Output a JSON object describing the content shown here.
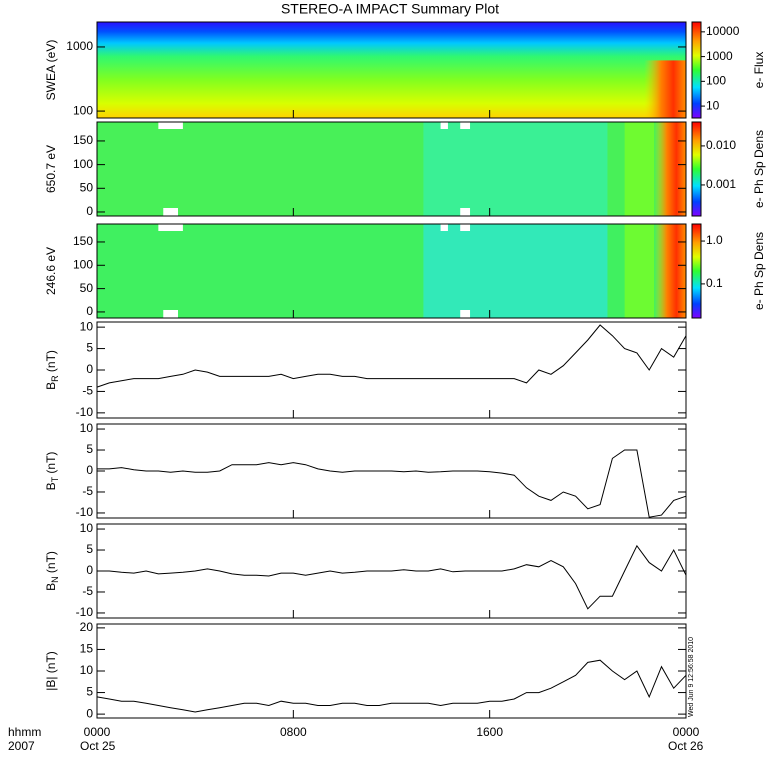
{
  "title": "STEREO-A IMPACT Summary Plot",
  "stamp": "Wed Jun  9 12:56:58 2010",
  "x_axis": {
    "xlim": [
      0,
      24
    ],
    "xticks": [
      {
        "value": 0,
        "label": "0000"
      },
      {
        "value": 8,
        "label": "0800"
      },
      {
        "value": 16,
        "label": "1600"
      },
      {
        "value": 24,
        "label": "0000"
      }
    ],
    "label": "hhmm",
    "year": "2007",
    "dates": [
      "Oct 25",
      "Oct 26"
    ],
    "x": [
      0,
      0.5,
      1,
      1.5,
      2,
      2.5,
      3,
      3.5,
      4,
      4.5,
      5,
      5.5,
      6,
      6.5,
      7,
      7.5,
      8,
      8.5,
      9,
      9.5,
      10,
      10.5,
      11,
      11.5,
      12,
      12.5,
      13,
      13.5,
      14,
      14.5,
      15,
      15.5,
      16,
      16.5,
      17,
      17.5,
      18,
      18.5,
      19,
      19.5,
      20,
      20.5,
      21,
      21.5,
      22,
      22.5,
      23,
      23.5,
      24
    ]
  },
  "chart_data": [
    {
      "type": "spectrogram",
      "ylabel": "SWEA (eV)",
      "log": true,
      "ylim": [
        78,
        2450
      ],
      "yticks": [
        100,
        1000
      ],
      "colorbar": {
        "label": "e- Flux",
        "log": true,
        "clim": [
          3.3,
          25000
        ],
        "ticks": [
          10000,
          1000,
          100,
          10
        ]
      }
    },
    {
      "type": "spectrogram",
      "ylabel": "650.7 eV",
      "ylim": [
        -8.5,
        190
      ],
      "yticks": [
        0,
        50,
        100,
        150
      ],
      "colorbar": {
        "label": "e- Ph Sp Dens",
        "log": true,
        "clim": [
          0.00016,
          0.041
        ],
        "ticks": [
          {
            "value": 0.01,
            "label": "0.010"
          },
          0.001
        ]
      }
    },
    {
      "type": "spectrogram",
      "ylabel": "246.6 eV",
      "ylim": [
        -13,
        188.5
      ],
      "yticks": [
        0,
        50,
        100,
        150
      ],
      "colorbar": {
        "label": "e- Ph Sp Dens",
        "log": true,
        "clim": [
          0.016,
          2.5
        ],
        "ticks": [
          {
            "value": 1,
            "label": "1.0"
          },
          0.1
        ]
      }
    },
    {
      "type": "line",
      "ylabel": {
        "base": "B",
        "sub": "R",
        "unit": " (nT)"
      },
      "ylim": [
        -11.2,
        11.2
      ],
      "yticks": [
        -10,
        -5,
        0,
        5,
        10
      ],
      "color": "#000000",
      "values": [
        -4,
        -3,
        -2.5,
        -2,
        -2,
        -2,
        -1.5,
        -1,
        0,
        -0.5,
        -1.5,
        -1.5,
        -1.5,
        -1.5,
        -1.5,
        -1,
        -2,
        -1.5,
        -1,
        -1,
        -1.5,
        -1.5,
        -2,
        -2,
        -2,
        -2,
        -2,
        -2,
        -2,
        -2,
        -2,
        -2,
        -2,
        -2,
        -2,
        -3,
        0,
        -1,
        1,
        4,
        7,
        10.5,
        8,
        5,
        4,
        0,
        5,
        3,
        8
      ]
    },
    {
      "type": "line",
      "ylabel": {
        "base": "B",
        "sub": "T",
        "unit": " (nT)"
      },
      "ylim": [
        -11.2,
        11.2
      ],
      "yticks": [
        -10,
        -5,
        0,
        5,
        10
      ],
      "color": "#000000",
      "values": [
        0.5,
        0.5,
        0.8,
        0.3,
        0,
        0,
        -0.3,
        0,
        -0.3,
        -0.3,
        0,
        1.5,
        1.5,
        1.5,
        2,
        1.5,
        2,
        1.5,
        0.5,
        0,
        -0.3,
        0,
        0,
        0,
        0,
        -0.2,
        0,
        -0.3,
        -0.2,
        0,
        0,
        0,
        -0.2,
        -0.5,
        -1,
        -4,
        -6,
        -7,
        -5,
        -6,
        -9,
        -8,
        3,
        5,
        5,
        -11,
        -10.5,
        -7,
        -6
      ]
    },
    {
      "type": "line",
      "ylabel": {
        "base": "B",
        "sub": "N",
        "unit": " (nT)"
      },
      "ylim": [
        -11.2,
        11.2
      ],
      "yticks": [
        -10,
        -5,
        0,
        5,
        10
      ],
      "color": "#000000",
      "values": [
        0,
        0,
        -0.3,
        -0.5,
        0,
        -0.7,
        -0.5,
        -0.3,
        0,
        0.5,
        0,
        -0.7,
        -1,
        -1,
        -1.2,
        -0.5,
        -0.5,
        -1,
        -0.5,
        0,
        -0.5,
        -0.3,
        0,
        0,
        0,
        0.3,
        0,
        0,
        0.5,
        -0.2,
        0,
        0,
        0,
        0,
        0.5,
        1.5,
        1,
        2.5,
        1,
        -3,
        -9,
        -6,
        -6,
        0,
        6,
        2,
        0,
        5,
        -1
      ]
    },
    {
      "type": "line",
      "ylabel": "|B| (nT)",
      "ylim": [
        -0.9,
        20.9
      ],
      "yticks": [
        0,
        5,
        10,
        15,
        20
      ],
      "color": "#000000",
      "values": [
        4,
        3.5,
        3,
        3,
        2.5,
        2,
        1.5,
        1,
        0.5,
        1,
        1.5,
        2,
        2.5,
        2.5,
        2,
        3,
        2.5,
        2.5,
        2,
        2,
        2.5,
        2.5,
        2,
        2,
        2.5,
        2.5,
        2.5,
        2.5,
        2,
        2.5,
        2.5,
        2.5,
        3,
        3,
        3.5,
        5,
        5,
        6,
        7.5,
        9,
        12,
        12.5,
        10,
        8,
        10,
        4,
        11,
        6,
        9
      ]
    }
  ]
}
